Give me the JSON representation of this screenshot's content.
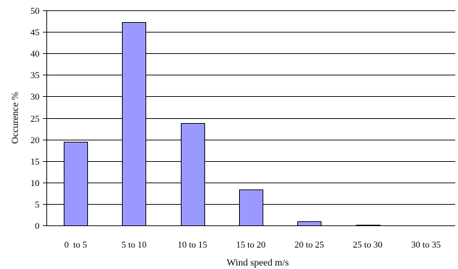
{
  "chart_data": {
    "type": "bar",
    "categories": [
      "0  to 5",
      "5 to 10",
      "10 to 15",
      "15 to 20",
      "20 to 25",
      "25 to 30",
      "30 to 35"
    ],
    "values": [
      19.5,
      47.3,
      23.8,
      8.3,
      1.0,
      0.2,
      0.0
    ],
    "xlabel": "Wind speed m/s",
    "ylabel": "Occurence %",
    "ylim": [
      0,
      50
    ],
    "yticks": [
      0,
      5,
      10,
      15,
      20,
      25,
      30,
      35,
      40,
      45,
      50
    ],
    "grid": true,
    "colors": {
      "bar_fill": "#9999ff",
      "bar_stroke": "#000000",
      "grid": "#000000"
    }
  }
}
